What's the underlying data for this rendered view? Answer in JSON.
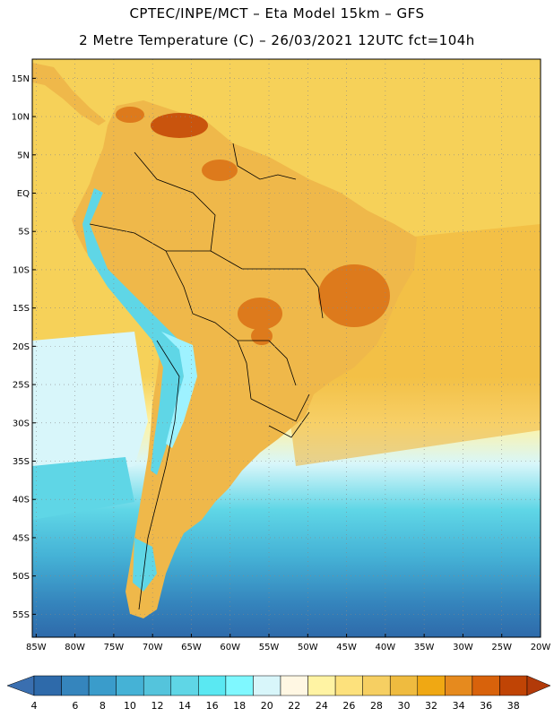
{
  "header": {
    "line1": "CPTEC/INPE/MCT –  Eta Model 15km – GFS",
    "line2": "2 Metre Temperature (C) – 26/03/2021 12UTC fct=104h"
  },
  "axes": {
    "lat_labels": [
      "15N",
      "10N",
      "5N",
      "EQ",
      "5S",
      "10S",
      "15S",
      "20S",
      "25S",
      "30S",
      "35S",
      "40S",
      "45S",
      "50S",
      "55S"
    ],
    "lat_values": [
      15,
      10,
      5,
      0,
      -5,
      -10,
      -15,
      -20,
      -25,
      -30,
      -35,
      -40,
      -45,
      -50,
      -55
    ],
    "lon_labels": [
      "85W",
      "80W",
      "75W",
      "70W",
      "65W",
      "60W",
      "55W",
      "50W",
      "45W",
      "40W",
      "35W",
      "30W",
      "25W",
      "20W"
    ],
    "lon_values": [
      -85,
      -80,
      -75,
      -70,
      -65,
      -60,
      -55,
      -50,
      -45,
      -40,
      -35,
      -30,
      -25,
      -20
    ],
    "lat_range": [
      -58,
      17.5
    ],
    "lon_range": [
      -85.5,
      -20
    ]
  },
  "colorbar": {
    "labels": [
      "4",
      "6",
      "8",
      "10",
      "12",
      "14",
      "16",
      "18",
      "20",
      "22",
      "24",
      "26",
      "28",
      "30",
      "32",
      "34",
      "36",
      "38"
    ],
    "colors": [
      "#2e6aaa",
      "#3585bd",
      "#3a9ccb",
      "#45b2d6",
      "#54c4dc",
      "#5fd6e6",
      "#5ae8f2",
      "#7ff8ff",
      "#d8f6fa",
      "#fff7e3",
      "#fff3a3",
      "#fde17c",
      "#f6cf62",
      "#efbb3f",
      "#f0a813",
      "#e68a1e",
      "#d8620b",
      "#c04405"
    ],
    "below_color": "#3a6fb0",
    "above_color": "#b23a09"
  },
  "map_colors": {
    "ocean_warm": "#f6d159",
    "ocean_hot": "#f0b237",
    "ocean_mid": "#fff3a3",
    "ocean_cool": "#d8f6fa",
    "ocean_cold1": "#5fd6e6",
    "ocean_cold2": "#45b2d6",
    "ocean_cold3": "#3585bd",
    "ocean_cold4": "#2e6aaa",
    "land_base": "#efb84a",
    "land_hot": "#dd7a1c",
    "land_veryhot": "#c9540d",
    "andes_cold": "#5fd6e6",
    "andes_cool": "#9ef2ff",
    "border": "#000000",
    "grid": "#888888"
  }
}
